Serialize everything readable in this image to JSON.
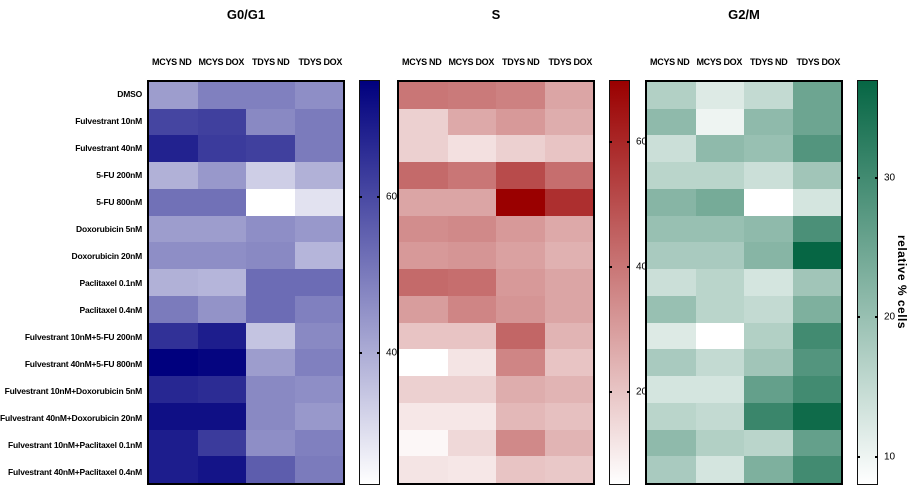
{
  "chart_data": {
    "type": "heatmap",
    "legend_label": "relative % cells",
    "columns": [
      "MCYS ND",
      "MCYS DOX",
      "TDYS ND",
      "TDYS DOX"
    ],
    "rows": [
      "DMSO",
      "Fulvestrant 10nM",
      "Fulvestrant 40nM",
      "5-FU 200nM",
      "5-FU 800nM",
      "Doxorubicin 5nM",
      "Doxorubicin 20nM",
      "Paclitaxel 0.1nM",
      "Paclitaxel 0.4nM",
      "Fulvestrant 10nM+5-FU 200nM",
      "Fulvestrant 40nM+5-FU 800nM",
      "Fulvestrant 10nM+Doxorubicin 5nM",
      "Fulvestrant 40nM+Doxorubicin 20nM",
      "Fulvestrant 10nM+Paclitaxel 0.1nM",
      "Fulvestrant 40nM+Paclitaxel 0.4nM"
    ],
    "panels": [
      {
        "title": "G0/G1",
        "colormap": {
          "low": "#ffffff",
          "high": "#00007e"
        },
        "vmin": 23,
        "vmax": 75,
        "ticks": [
          60,
          40
        ],
        "values": [
          [
            43,
            49,
            49,
            46
          ],
          [
            61,
            62,
            47,
            50
          ],
          [
            68,
            63,
            62,
            50
          ],
          [
            39,
            44,
            33,
            39
          ],
          [
            52,
            52,
            23,
            29
          ],
          [
            43,
            43,
            46,
            44
          ],
          [
            46,
            46,
            47,
            38
          ],
          [
            39,
            38,
            53,
            53
          ],
          [
            50,
            45,
            53,
            49
          ],
          [
            65,
            69,
            35,
            47
          ],
          [
            75,
            74,
            43,
            49
          ],
          [
            67,
            66,
            47,
            46
          ],
          [
            72,
            72,
            47,
            44
          ],
          [
            69,
            63,
            46,
            49
          ],
          [
            69,
            71,
            56,
            50
          ]
        ]
      },
      {
        "title": "S",
        "colormap": {
          "low": "#ffffff",
          "high": "#9a0000"
        },
        "vmin": 5,
        "vmax": 70,
        "ticks": [
          60,
          40,
          20
        ],
        "values": [
          [
            40,
            39,
            37,
            28
          ],
          [
            17,
            27,
            31,
            26
          ],
          [
            17,
            13,
            17,
            20
          ],
          [
            43,
            40,
            51,
            42
          ],
          [
            28,
            28,
            70,
            58
          ],
          [
            34,
            35,
            31,
            27
          ],
          [
            31,
            32,
            29,
            25
          ],
          [
            43,
            42,
            31,
            28
          ],
          [
            30,
            36,
            32,
            28
          ],
          [
            20,
            20,
            44,
            24
          ],
          [
            5,
            12,
            36,
            20
          ],
          [
            17,
            17,
            26,
            24
          ],
          [
            11,
            11,
            23,
            21
          ],
          [
            7,
            15,
            35,
            24
          ],
          [
            12,
            11,
            20,
            19
          ]
        ]
      },
      {
        "title": "G2/M",
        "colormap": {
          "low": "#ffffff",
          "high": "#066644"
        },
        "vmin": 8,
        "vmax": 37,
        "ticks": [
          30,
          20,
          10
        ],
        "values": [
          [
            17,
            12,
            15,
            25
          ],
          [
            21,
            10,
            21,
            25
          ],
          [
            14,
            21,
            20,
            28
          ],
          [
            16,
            16,
            14,
            19
          ],
          [
            22,
            24,
            8,
            13
          ],
          [
            20,
            20,
            21,
            29
          ],
          [
            18,
            18,
            22,
            37
          ],
          [
            14,
            16,
            13,
            19
          ],
          [
            20,
            16,
            15,
            23
          ],
          [
            12,
            8,
            17,
            30
          ],
          [
            18,
            15,
            19,
            28
          ],
          [
            13,
            13,
            26,
            30
          ],
          [
            16,
            15,
            31,
            36
          ],
          [
            21,
            17,
            16,
            26
          ],
          [
            18,
            13,
            23,
            30
          ]
        ]
      }
    ]
  }
}
